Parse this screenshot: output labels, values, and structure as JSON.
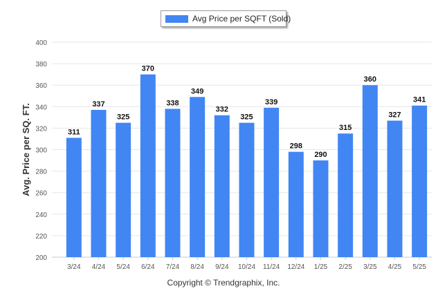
{
  "footer": "Copyright © Trendgraphix, Inc.",
  "chart_data": {
    "type": "bar",
    "title": "",
    "xlabel": "",
    "ylabel": "Avg. Price per SQ. FT.",
    "legend": {
      "position": "top-center",
      "entries": [
        "Avg Price per SQFT (Sold)"
      ]
    },
    "categories": [
      "3/24",
      "4/24",
      "5/24",
      "6/24",
      "7/24",
      "8/24",
      "9/24",
      "10/24",
      "11/24",
      "12/24",
      "1/25",
      "2/25",
      "3/25",
      "4/25",
      "5/25"
    ],
    "series": [
      {
        "name": "Avg Price per SQFT (Sold)",
        "color": "#4286f4",
        "values": [
          311,
          337,
          325,
          370,
          338,
          349,
          332,
          325,
          339,
          298,
          290,
          315,
          360,
          327,
          341
        ]
      }
    ],
    "ylim": [
      200,
      400
    ],
    "yticks": [
      200,
      220,
      240,
      260,
      280,
      300,
      320,
      340,
      360,
      380,
      400
    ],
    "grid": true,
    "data_labels": true
  }
}
